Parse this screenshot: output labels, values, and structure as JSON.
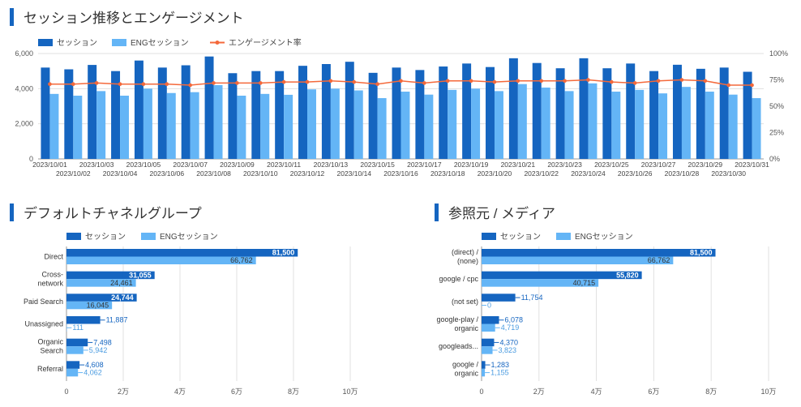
{
  "colors": {
    "session": "#1565c0",
    "eng_session": "#64b5f6",
    "engagement": "#f4693b",
    "grid": "#e0e0e0",
    "title_bar": "#1565c0"
  },
  "sections": {
    "top_title": "セッション推移とエンゲージメント",
    "left_title": "デフォルトチャネルグループ",
    "right_title": "参照元 / メディア"
  },
  "chart_data": [
    {
      "type": "bar",
      "title": "セッション推移とエンゲージメント",
      "legend": {
        "position": "top-left",
        "items": [
          "セッション",
          "ENGセッション",
          "エンゲージメント率"
        ]
      },
      "categories": [
        "2023/10/01",
        "2023/10/02",
        "2023/10/03",
        "2023/10/04",
        "2023/10/05",
        "2023/10/06",
        "2023/10/07",
        "2023/10/08",
        "2023/10/09",
        "2023/10/10",
        "2023/10/11",
        "2023/10/12",
        "2023/10/13",
        "2023/10/14",
        "2023/10/15",
        "2023/10/16",
        "2023/10/17",
        "2023/10/18",
        "2023/10/19",
        "2023/10/20",
        "2023/10/21",
        "2023/10/22",
        "2023/10/23",
        "2023/10/24",
        "2023/10/25",
        "2023/10/26",
        "2023/10/27",
        "2023/10/28",
        "2023/10/29",
        "2023/10/30",
        "2023/10/31"
      ],
      "series": [
        {
          "name": "セッション",
          "values": [
            5200,
            5100,
            5350,
            5000,
            5600,
            5200,
            5330,
            5830,
            4880,
            5000,
            5000,
            5300,
            5400,
            5530,
            4900,
            5200,
            5060,
            5260,
            5430,
            5230,
            5730,
            5460,
            5160,
            5730,
            5160,
            5430,
            5000,
            5360,
            5130,
            5200,
            4960
          ]
        },
        {
          "name": "ENGセッション",
          "values": [
            3700,
            3600,
            3860,
            3600,
            4000,
            3750,
            3800,
            4200,
            3600,
            3700,
            3650,
            3960,
            4000,
            3900,
            3460,
            3830,
            3660,
            3930,
            4000,
            3860,
            4260,
            4060,
            3860,
            4300,
            3830,
            3930,
            3730,
            4100,
            3830,
            3660,
            3460
          ]
        },
        {
          "name": "エンゲージメント率",
          "axis": "right",
          "values": [
            71,
            71,
            72,
            71,
            71,
            71,
            70,
            72,
            72,
            72,
            73,
            73,
            74,
            73,
            71,
            74,
            72,
            74,
            74,
            73,
            74,
            74,
            74,
            75,
            73,
            72,
            74,
            75,
            74,
            70,
            70
          ]
        }
      ],
      "ylim": [
        0,
        6000
      ],
      "yticks": [
        "0",
        "2,000",
        "4,000",
        "6,000"
      ],
      "y2lim": [
        0,
        100
      ],
      "y2ticks": [
        "0%",
        "25%",
        "50%",
        "75%",
        "100%"
      ],
      "grid": true
    },
    {
      "type": "bar",
      "orientation": "horizontal",
      "title": "デフォルトチャネルグループ",
      "legend": {
        "position": "top-left",
        "items": [
          "セッション",
          "ENGセッション"
        ]
      },
      "categories": [
        [
          "Direct"
        ],
        [
          "Cross-",
          "network"
        ],
        [
          "Paid Search"
        ],
        [
          "Unassigned"
        ],
        [
          "Organic",
          "Search"
        ],
        [
          "Referral"
        ]
      ],
      "series": [
        {
          "name": "セッション",
          "values": [
            81500,
            31055,
            24744,
            11887,
            7498,
            4608
          ],
          "labels": [
            "81,500",
            "31,055",
            "24,744",
            "11,887",
            "7,498",
            "4,608"
          ]
        },
        {
          "name": "ENGセッション",
          "values": [
            66762,
            24461,
            16045,
            111,
            5942,
            4062
          ],
          "labels": [
            "66,762",
            "24,461",
            "16,045",
            "111",
            "5,942",
            "4,062"
          ]
        }
      ],
      "xlim": [
        0,
        100000
      ],
      "xticks": [
        "0",
        "2万",
        "4万",
        "6万",
        "8万",
        "10万"
      ],
      "grid": true
    },
    {
      "type": "bar",
      "orientation": "horizontal",
      "title": "参照元 / メディア",
      "legend": {
        "position": "top-left",
        "items": [
          "セッション",
          "ENGセッション"
        ]
      },
      "categories": [
        [
          "(direct) /",
          "(none)"
        ],
        [
          "google / cpc"
        ],
        [
          "(not set)"
        ],
        [
          "google-play /",
          "organic"
        ],
        [
          "googleads..."
        ],
        [
          "google /",
          "organic"
        ]
      ],
      "series": [
        {
          "name": "セッション",
          "values": [
            81500,
            55820,
            11754,
            6078,
            4370,
            1283
          ],
          "labels": [
            "81,500",
            "55,820",
            "11,754",
            "6,078",
            "4,370",
            "1,283"
          ]
        },
        {
          "name": "ENGセッション",
          "values": [
            66762,
            40715,
            0,
            4719,
            3823,
            1155
          ],
          "labels": [
            "66,762",
            "40,715",
            "0",
            "4,719",
            "3,823",
            "1,155"
          ]
        }
      ],
      "xlim": [
        0,
        100000
      ],
      "xticks": [
        "0",
        "2万",
        "4万",
        "6万",
        "8万",
        "10万"
      ],
      "grid": true
    }
  ]
}
